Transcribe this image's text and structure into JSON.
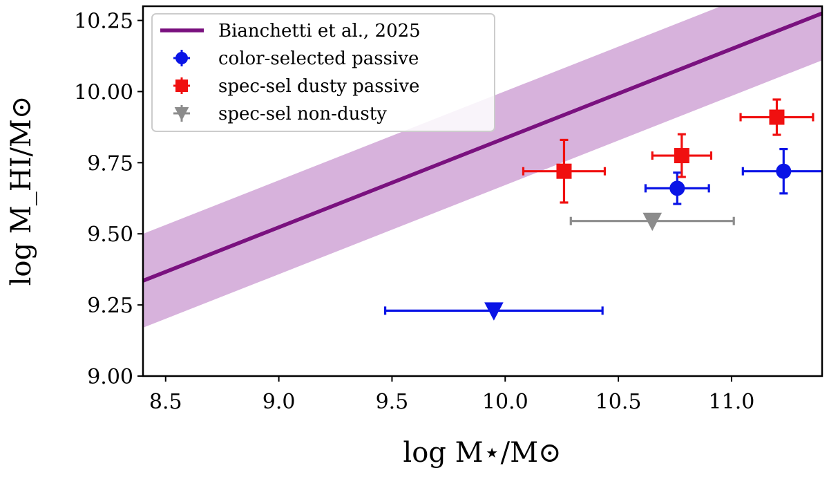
{
  "chart_data": {
    "type": "scatter",
    "title": "",
    "xlabel": "log M⋆/M⊙",
    "ylabel": "log M_HI/M⊙",
    "xlim": [
      8.4,
      11.4
    ],
    "ylim": [
      9.0,
      10.3
    ],
    "xticks": [
      "8.5",
      "9.0",
      "9.5",
      "10.0",
      "10.5",
      "11.0"
    ],
    "yticks": [
      "9.00",
      "9.25",
      "9.50",
      "9.75",
      "10.00",
      "10.25"
    ],
    "legend_position": "top-left",
    "relation": {
      "name": "Bianchetti et al., 2025",
      "color": "#7a117f",
      "band_color": "#d7b2dc",
      "x": [
        8.4,
        11.4
      ],
      "y": [
        9.335,
        10.275
      ],
      "band_halfwidth": 0.165
    },
    "series": [
      {
        "name": "color-selected passive",
        "color": "#0a14e6",
        "marker": "circle",
        "points": [
          {
            "x": 10.76,
            "y": 9.66,
            "xerr": 0.14,
            "yerr": 0.055
          },
          {
            "x": 11.23,
            "y": 9.72,
            "xerr": 0.18,
            "yerr": 0.078
          }
        ]
      },
      {
        "name": "spec-sel dusty passive",
        "color": "#f01010",
        "marker": "square",
        "points": [
          {
            "x": 10.26,
            "y": 9.72,
            "xerr": 0.18,
            "yerr": 0.11
          },
          {
            "x": 10.78,
            "y": 9.775,
            "xerr": 0.13,
            "yerr": 0.075
          },
          {
            "x": 11.2,
            "y": 9.91,
            "xerr": 0.16,
            "yerr": 0.062
          }
        ]
      },
      {
        "name": "spec-sel non-dusty",
        "color": "#8c8c8c",
        "marker": "triangle-down",
        "points": [
          {
            "x": 10.65,
            "y": 9.545,
            "xerr": 0.36,
            "yerr": 0
          }
        ]
      },
      {
        "name": "",
        "color": "#0a14e6",
        "marker": "triangle-down",
        "points": [
          {
            "x": 9.95,
            "y": 9.23,
            "xerr": 0.48,
            "yerr": 0
          }
        ]
      }
    ]
  }
}
